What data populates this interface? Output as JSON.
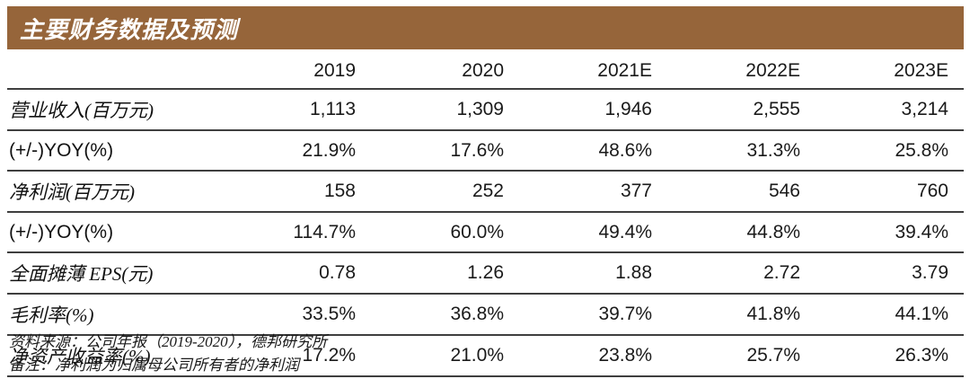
{
  "title": "主要财务数据及预测",
  "colors": {
    "header_bg": "#96653A",
    "header_text": "#FFFFFF",
    "rule_line": "#3F3F3F",
    "body_text": "#1A1A1A"
  },
  "table": {
    "year_headers": [
      "2019",
      "2020",
      "2021E",
      "2022E",
      "2023E"
    ],
    "rows": [
      {
        "label": "营业收入(百万元)",
        "values": [
          "1,113",
          "1,309",
          "1,946",
          "2,555",
          "3,214"
        ]
      },
      {
        "label": "(+/-)YOY(%)",
        "values": [
          "21.9%",
          "17.6%",
          "48.6%",
          "31.3%",
          "25.8%"
        ]
      },
      {
        "label": "净利润(百万元)",
        "values": [
          "158",
          "252",
          "377",
          "546",
          "760"
        ]
      },
      {
        "label": "(+/-)YOY(%)",
        "values": [
          "114.7%",
          "60.0%",
          "49.4%",
          "44.8%",
          "39.4%"
        ]
      },
      {
        "label": "全面摊薄 EPS(元)",
        "values": [
          "0.78",
          "1.26",
          "1.88",
          "2.72",
          "3.79"
        ]
      },
      {
        "label": "毛利率(%)",
        "values": [
          "33.5%",
          "36.8%",
          "39.7%",
          "41.8%",
          "44.1%"
        ]
      },
      {
        "label": "净资产收益率(%)",
        "values": [
          "17.2%",
          "21.0%",
          "23.8%",
          "25.7%",
          "26.3%"
        ]
      }
    ]
  },
  "footer": {
    "source": "资料来源：公司年报（2019-2020），德邦研究所",
    "note": "备注：净利润为归属母公司所有者的净利润"
  }
}
